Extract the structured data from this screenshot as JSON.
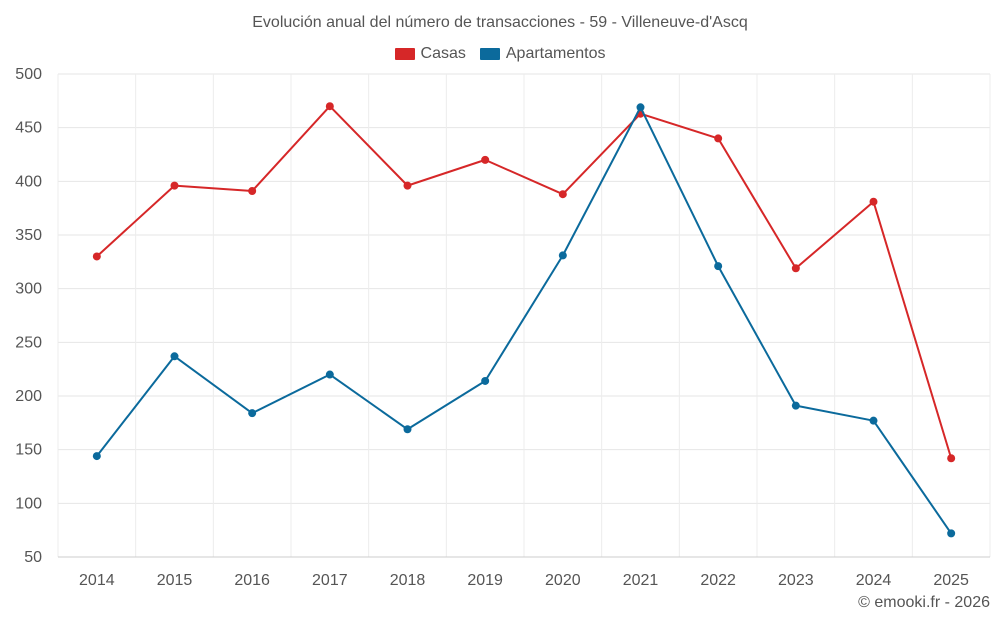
{
  "chart_data": {
    "type": "line",
    "title": "Evolución anual del número de transacciones - 59 - Villeneuve-d'Ascq",
    "categories": [
      "2014",
      "2015",
      "2016",
      "2017",
      "2018",
      "2019",
      "2020",
      "2021",
      "2022",
      "2023",
      "2024",
      "2025"
    ],
    "series": [
      {
        "name": "Casas",
        "color": "#d62728",
        "values": [
          330,
          396,
          391,
          470,
          396,
          420,
          388,
          463,
          440,
          319,
          381,
          142
        ]
      },
      {
        "name": "Apartamentos",
        "color": "#0b6a9c",
        "values": [
          144,
          237,
          184,
          220,
          169,
          214,
          331,
          469,
          321,
          191,
          177,
          72
        ]
      }
    ],
    "yticks": [
      50,
      100,
      150,
      200,
      250,
      300,
      350,
      400,
      450,
      500
    ],
    "ylim": [
      50,
      500
    ],
    "xlabel": "",
    "ylabel": "",
    "grid": true,
    "legend_position": "top-center"
  },
  "watermark": "© emooki.fr - 2026"
}
